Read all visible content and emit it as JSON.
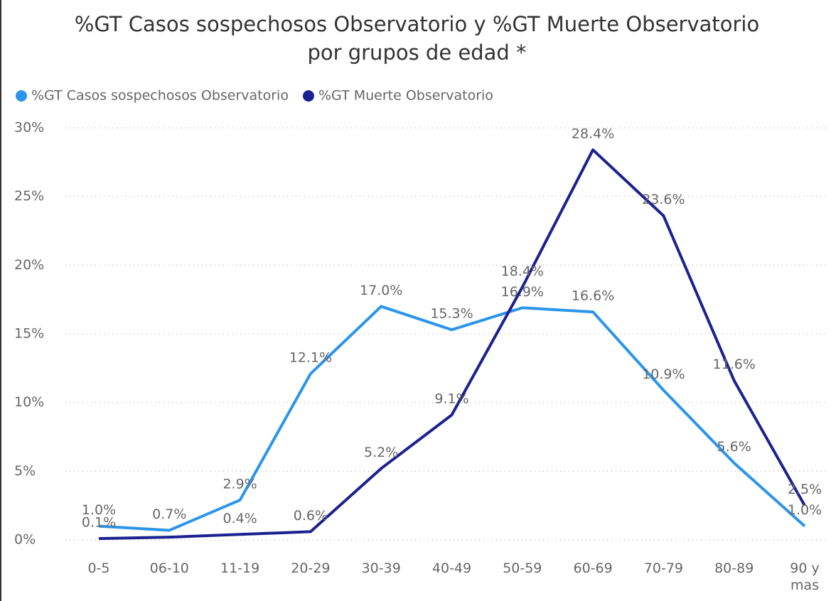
{
  "chart_data": {
    "type": "line",
    "title": "%GT Casos sospechosos Observatorio y %GT Muerte Observatorio por grupos de edad *",
    "categories": [
      "0-5",
      "06-10",
      "11-19",
      "20-29",
      "30-39",
      "40-49",
      "50-59",
      "60-69",
      "70-79",
      "80-89",
      "90 y mas"
    ],
    "series": [
      {
        "name": "%GT Casos sospechosos Observatorio",
        "color": "#2b95ea",
        "values": [
          1.0,
          0.7,
          2.9,
          12.1,
          17.0,
          15.3,
          16.9,
          16.6,
          10.9,
          5.6,
          1.0
        ],
        "value_labels": [
          "1.0%",
          "0.7%",
          "2.9%",
          "12.1%",
          "17.0%",
          "15.3%",
          "16.9%",
          "16.6%",
          "10.9%",
          "5.6%",
          "1.0%"
        ]
      },
      {
        "name": "%GT Muerte Observatorio",
        "color": "#1b2190",
        "values": [
          0.1,
          0.2,
          0.4,
          0.6,
          5.2,
          9.1,
          18.4,
          28.4,
          23.6,
          11.6,
          2.5
        ],
        "value_labels": [
          "0.1%",
          null,
          "0.4%",
          "0.6%",
          "5.2%",
          "9.1%",
          "18.4%",
          "28.4%",
          "23.6%",
          "11.6%",
          "2.5%"
        ]
      }
    ],
    "ylim": [
      0,
      30
    ],
    "yticks": [
      {
        "value": 0,
        "label": "0%"
      },
      {
        "value": 5,
        "label": "5%"
      },
      {
        "value": 10,
        "label": "10%"
      },
      {
        "value": 15,
        "label": "15%"
      },
      {
        "value": 20,
        "label": "20%"
      },
      {
        "value": 25,
        "label": "25%"
      },
      {
        "value": 30,
        "label": "30%"
      }
    ],
    "grid": true,
    "legend": "top"
  }
}
